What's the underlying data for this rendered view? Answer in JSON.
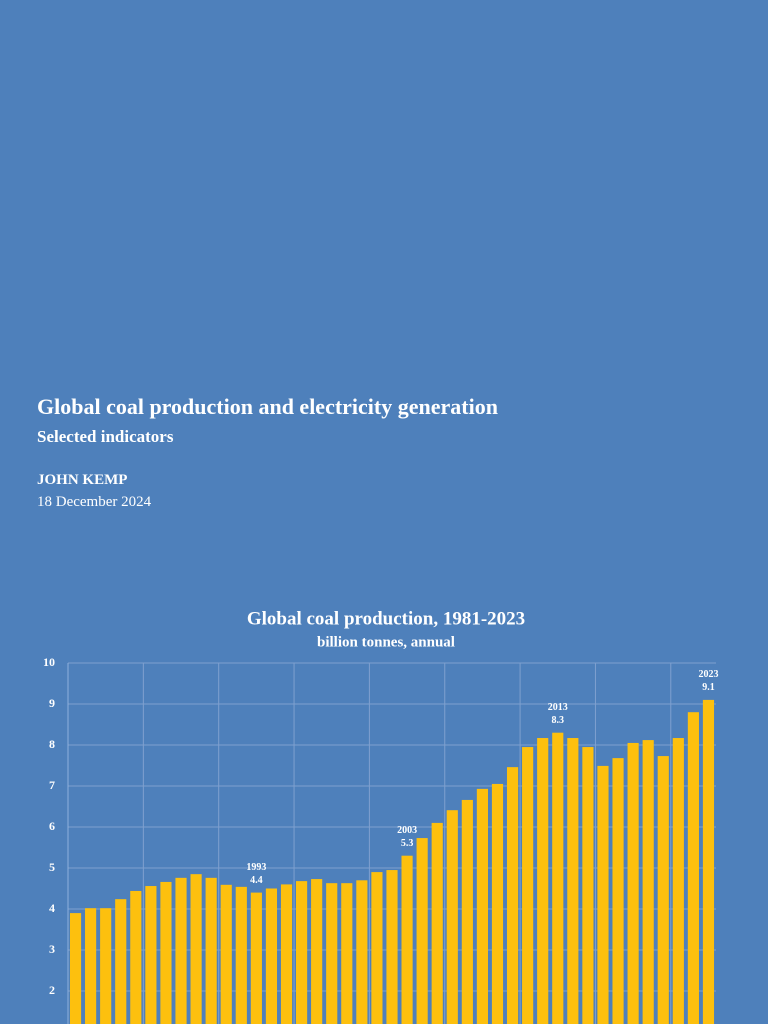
{
  "header": {
    "title": "Global coal production and electricity generation",
    "subtitle": "Selected indicators",
    "author": "JOHN KEMP",
    "date": "18 December 2024"
  },
  "chart_data": {
    "type": "bar",
    "title": "Global coal production, 1981-2023",
    "subtitle": "billion tonnes, annual",
    "categories": [
      null,
      null,
      null,
      null,
      null,
      null,
      null,
      null,
      null,
      null,
      null,
      null,
      "1993",
      null,
      null,
      null,
      null,
      null,
      null,
      null,
      null,
      null,
      "2003",
      null,
      null,
      null,
      null,
      null,
      null,
      null,
      null,
      null,
      "2013",
      null,
      null,
      null,
      null,
      null,
      null,
      null,
      null,
      null,
      "2023"
    ],
    "values": [
      3.9,
      4.02,
      4.02,
      4.24,
      4.44,
      4.56,
      4.66,
      4.76,
      4.85,
      4.76,
      4.59,
      4.54,
      4.4,
      4.5,
      4.6,
      4.68,
      4.73,
      4.63,
      4.63,
      4.7,
      4.9,
      4.95,
      5.3,
      5.73,
      6.1,
      6.41,
      6.66,
      6.93,
      7.05,
      7.46,
      7.95,
      8.17,
      8.3,
      8.17,
      7.95,
      7.49,
      7.68,
      8.05,
      8.12,
      7.73,
      8.17,
      8.8,
      9.1
    ],
    "value_labels": [
      null,
      null,
      null,
      null,
      null,
      null,
      null,
      null,
      null,
      null,
      null,
      null,
      "4.4",
      null,
      null,
      null,
      null,
      null,
      null,
      null,
      null,
      null,
      "5.3",
      null,
      null,
      null,
      null,
      null,
      null,
      null,
      null,
      null,
      "8.3",
      null,
      null,
      null,
      null,
      null,
      null,
      null,
      null,
      null,
      "9.1"
    ],
    "color": "#fdc00e",
    "ylim": [
      0,
      10
    ],
    "yticks": [
      2,
      3,
      4,
      5,
      6,
      7,
      8,
      9,
      10
    ],
    "grid": true
  }
}
